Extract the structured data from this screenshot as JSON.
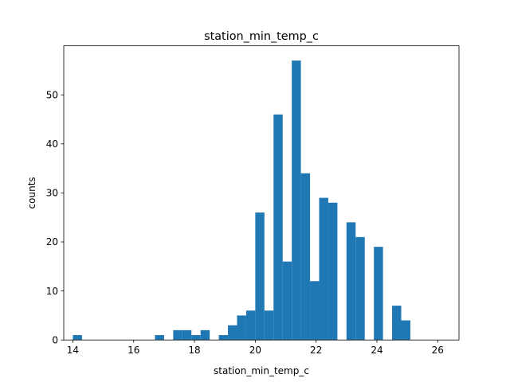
{
  "chart_data": {
    "type": "histogram",
    "title": "station_min_temp_c",
    "xlabel": "station_min_temp_c",
    "ylabel": "counts",
    "xlim": [
      13.7,
      26.7
    ],
    "ylim": [
      0,
      60
    ],
    "xticks": [
      14,
      16,
      18,
      20,
      22,
      24,
      26
    ],
    "yticks": [
      0,
      10,
      20,
      30,
      40,
      50
    ],
    "grid": false,
    "bar_color": "#1f77b4",
    "bins": {
      "start": 14.0,
      "width": 0.3,
      "counts": [
        1,
        0,
        0,
        0,
        0,
        0,
        0,
        0,
        0,
        1,
        0,
        2,
        2,
        1,
        2,
        0,
        1,
        3,
        5,
        6,
        26,
        6,
        46,
        16,
        57,
        34,
        12,
        29,
        28,
        0,
        24,
        21,
        0,
        19,
        0,
        7,
        4
      ]
    }
  }
}
